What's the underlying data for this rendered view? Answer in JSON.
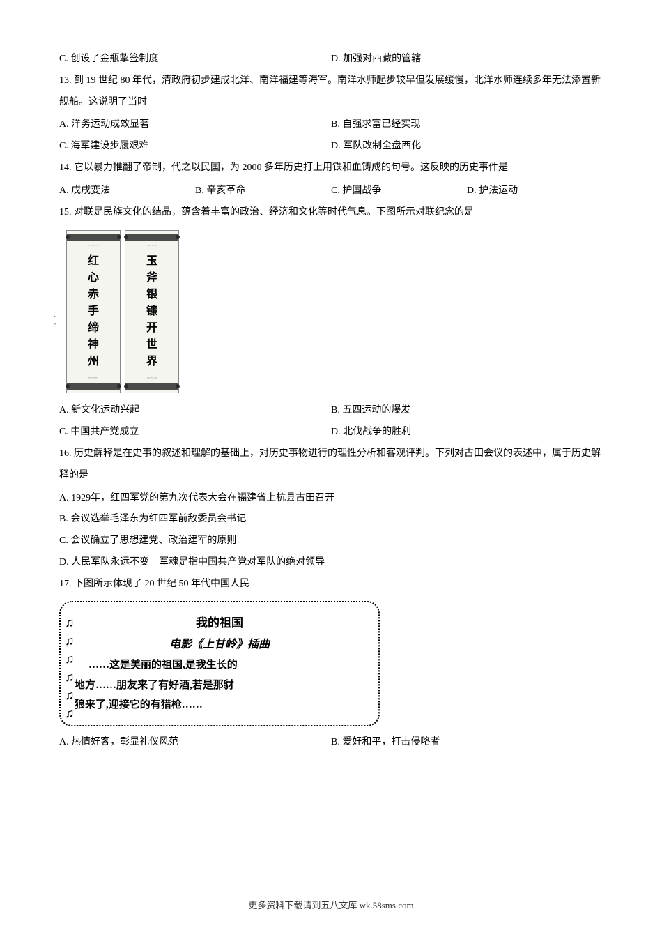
{
  "q12": {
    "optC": "C. 创设了金瓶掣签制度",
    "optD": "D. 加强对西藏的管辖"
  },
  "q13": {
    "num": "13",
    "text": ". 到 19 世纪 80 年代，清政府初步建成北洋、南洋福建等海军。南洋水师起步较早但发展缓慢，北洋水师连续多年无法添置新　舰船。这说明了当时",
    "optA": "A. 洋务运动成效显著",
    "optB": "B. 自强求富已经实现",
    "optC": "C. 海军建设步履艰难",
    "optD": "D. 军队改制全盘西化"
  },
  "q14": {
    "num": "14",
    "text": ". 它以暴力推翻了帝制，代之以民国，为 2000 多年历史打上用铁和血铸成的句号。这反映的历史事件是",
    "optA": "A. 戊戌变法",
    "optB": "B. 辛亥革命",
    "optC": "C. 护国战争",
    "optD": "D. 护法运动"
  },
  "q15": {
    "num": "15",
    "text": ". 对联是民族文化的结晶，蕴含着丰富的政治、经济和文化等时代气息。下图所示对联纪念的是",
    "couplet_left": [
      "红",
      "心",
      "赤",
      "手",
      "缔",
      "神",
      "州"
    ],
    "couplet_right": [
      "玉",
      "斧",
      "银",
      "镰",
      "开",
      "世",
      "界"
    ],
    "optA": "A. 新文化运动兴起",
    "optB": "B. 五四运动的爆发",
    "optC": "C. 中国共产党成立",
    "optD": "D. 北伐战争的胜利"
  },
  "q16": {
    "num": "16",
    "text": ". 历史解释是在史事的叙述和理解的基础上，对历史事物进行的理性分析和客观评判。下列对古田会议的表述中，属于历史解释的是",
    "optA": "A. 1929年，红四军党的第九次代表大会在福建省上杭县古田召开",
    "optB": "B. 会议选举毛泽东为红四军前敌委员会书记",
    "optC": "C. 会议确立了思想建党、政治建军的原则",
    "optD": "D. 人民军队永远不变　军魂是指中国共产党对军队的绝对领导"
  },
  "q17": {
    "num": "17",
    "text": ". 下图所示体现了 20 世纪 50 年代中国人民",
    "song_title": "我的祖国",
    "song_subtitle": "电影《上甘岭》插曲",
    "song_line1": "……这是美丽的祖国,是我生长的",
    "song_line2": "地方……朋友来了有好酒,若是那豺",
    "song_line3": "狼来了,迎接它的有猎枪……",
    "optA": "A. 热情好客，彰显礼仪风范",
    "optB": "B. 爱好和平，打击侵略者"
  },
  "footer": "更多资料下载请到五八文库 wk.58sms.com"
}
